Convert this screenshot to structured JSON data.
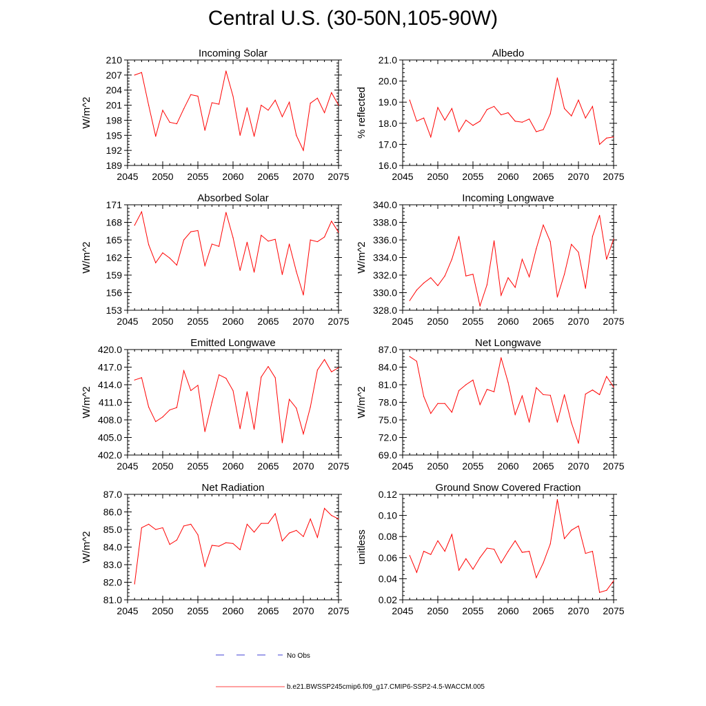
{
  "page": {
    "title": "Central U.S. (30-50N,105-90W)"
  },
  "legend": {
    "entries": [
      {
        "label": "No Obs",
        "color": "#0000c8",
        "style": "dashed"
      },
      {
        "label": "b.e21.BWSSP245cmip6.f09_g17.CMIP6-SSP2-4.5-WACCM.005",
        "color": "#ff0000",
        "style": "solid"
      }
    ]
  },
  "chart_data": [
    {
      "type": "line",
      "title": "Incoming Solar",
      "ylabel": "W/m^2",
      "xlabel": "",
      "xlim": [
        2045,
        2075
      ],
      "xticks": [
        "2045",
        "2050",
        "2055",
        "2060",
        "2065",
        "2070",
        "2075"
      ],
      "ylim": [
        189,
        210
      ],
      "yticks": [
        "189",
        "192",
        "195",
        "198",
        "201",
        "204",
        "207",
        "210"
      ],
      "series": [
        {
          "name": "b.e21.BWSSP245cmip6.f09_g17.CMIP6-SSP2-4.5-WACCM.005",
          "color": "#ff0000",
          "x": [
            2046,
            2047,
            2048,
            2049,
            2050,
            2051,
            2052,
            2053,
            2054,
            2055,
            2056,
            2057,
            2058,
            2059,
            2060,
            2061,
            2062,
            2063,
            2064,
            2065,
            2066,
            2067,
            2068,
            2069,
            2070,
            2071,
            2072,
            2073,
            2074,
            2075
          ],
          "values": [
            207.0,
            207.5,
            201.0,
            194.8,
            200.0,
            197.6,
            197.3,
            200.3,
            203.1,
            202.8,
            196.0,
            201.5,
            201.2,
            207.8,
            202.8,
            195.0,
            200.5,
            194.8,
            201.0,
            200.0,
            202.0,
            198.7,
            201.6,
            195.0,
            192.0,
            201.4,
            202.4,
            199.5,
            203.5,
            201.0
          ]
        }
      ]
    },
    {
      "type": "line",
      "title": "Albedo",
      "ylabel": "% reflected",
      "xlabel": "",
      "xlim": [
        2045,
        2075
      ],
      "xticks": [
        "2045",
        "2050",
        "2055",
        "2060",
        "2065",
        "2070",
        "2075"
      ],
      "ylim": [
        16.0,
        21.0
      ],
      "yticks": [
        "16.0",
        "17.0",
        "18.0",
        "19.0",
        "20.0",
        "21.0"
      ],
      "series": [
        {
          "name": "b.e21.BWSSP245cmip6.f09_g17.CMIP6-SSP2-4.5-WACCM.005",
          "color": "#ff0000",
          "x": [
            2046,
            2047,
            2048,
            2049,
            2050,
            2051,
            2052,
            2053,
            2054,
            2055,
            2056,
            2057,
            2058,
            2059,
            2060,
            2061,
            2062,
            2063,
            2064,
            2065,
            2066,
            2067,
            2068,
            2069,
            2070,
            2071,
            2072,
            2073,
            2074,
            2075
          ],
          "values": [
            19.1,
            18.1,
            18.25,
            17.35,
            18.75,
            18.15,
            18.7,
            17.6,
            18.15,
            17.9,
            18.1,
            18.65,
            18.8,
            18.4,
            18.5,
            18.1,
            18.05,
            18.2,
            17.6,
            17.7,
            18.45,
            20.15,
            18.7,
            18.35,
            19.1,
            18.25,
            18.8,
            17.0,
            17.3,
            17.35
          ]
        }
      ]
    },
    {
      "type": "line",
      "title": "Absorbed Solar",
      "ylabel": "W/m^2",
      "xlabel": "",
      "xlim": [
        2045,
        2075
      ],
      "xticks": [
        "2045",
        "2050",
        "2055",
        "2060",
        "2065",
        "2070",
        "2075"
      ],
      "ylim": [
        153,
        171
      ],
      "yticks": [
        "153",
        "156",
        "159",
        "162",
        "165",
        "168",
        "171"
      ],
      "series": [
        {
          "name": "b.e21.BWSSP245cmip6.f09_g17.CMIP6-SSP2-4.5-WACCM.005",
          "color": "#ff0000",
          "x": [
            2046,
            2047,
            2048,
            2049,
            2050,
            2051,
            2052,
            2053,
            2054,
            2055,
            2056,
            2057,
            2058,
            2059,
            2060,
            2061,
            2062,
            2063,
            2064,
            2065,
            2066,
            2067,
            2068,
            2069,
            2070,
            2071,
            2072,
            2073,
            2074,
            2075
          ],
          "values": [
            167.5,
            169.8,
            164.2,
            161.1,
            162.8,
            161.9,
            160.7,
            165.0,
            166.4,
            166.6,
            160.6,
            164.3,
            163.9,
            169.7,
            165.4,
            159.8,
            164.6,
            159.5,
            165.8,
            164.8,
            165.1,
            159.1,
            164.3,
            159.6,
            155.6,
            165.0,
            164.7,
            165.5,
            168.2,
            166.3
          ]
        }
      ]
    },
    {
      "type": "line",
      "title": "Incoming Longwave",
      "ylabel": "W/m^2",
      "xlabel": "",
      "xlim": [
        2045,
        2075
      ],
      "xticks": [
        "2045",
        "2050",
        "2055",
        "2060",
        "2065",
        "2070",
        "2075"
      ],
      "ylim": [
        328.0,
        340.0
      ],
      "yticks": [
        "328.0",
        "330.0",
        "332.0",
        "334.0",
        "336.0",
        "338.0",
        "340.0"
      ],
      "series": [
        {
          "name": "b.e21.BWSSP245cmip6.f09_g17.CMIP6-SSP2-4.5-WACCM.005",
          "color": "#ff0000",
          "x": [
            2046,
            2047,
            2048,
            2049,
            2050,
            2051,
            2052,
            2053,
            2054,
            2055,
            2056,
            2057,
            2058,
            2059,
            2060,
            2061,
            2062,
            2063,
            2064,
            2065,
            2066,
            2067,
            2068,
            2069,
            2070,
            2071,
            2072,
            2073,
            2074,
            2075
          ],
          "values": [
            329.1,
            330.3,
            331.1,
            331.7,
            330.8,
            331.9,
            333.8,
            336.4,
            331.9,
            332.1,
            328.5,
            330.9,
            335.9,
            329.7,
            331.7,
            330.6,
            333.8,
            331.8,
            335.0,
            337.7,
            335.8,
            329.5,
            332.1,
            335.5,
            334.6,
            330.5,
            336.4,
            338.8,
            333.8,
            336.1
          ]
        }
      ]
    },
    {
      "type": "line",
      "title": "Emitted Longwave",
      "ylabel": "W/m^2",
      "xlabel": "",
      "xlim": [
        2045,
        2075
      ],
      "xticks": [
        "2045",
        "2050",
        "2055",
        "2060",
        "2065",
        "2070",
        "2075"
      ],
      "ylim": [
        402.0,
        420.0
      ],
      "yticks": [
        "402.0",
        "405.0",
        "408.0",
        "411.0",
        "414.0",
        "417.0",
        "420.0"
      ],
      "series": [
        {
          "name": "b.e21.BWSSP245cmip6.f09_g17.CMIP6-SSP2-4.5-WACCM.005",
          "color": "#ff0000",
          "x": [
            2046,
            2047,
            2048,
            2049,
            2050,
            2051,
            2052,
            2053,
            2054,
            2055,
            2056,
            2057,
            2058,
            2059,
            2060,
            2061,
            2062,
            2063,
            2064,
            2065,
            2066,
            2067,
            2068,
            2069,
            2070,
            2071,
            2072,
            2073,
            2074,
            2075
          ],
          "values": [
            414.8,
            415.2,
            410.2,
            407.7,
            408.5,
            409.7,
            410.1,
            416.4,
            413.0,
            413.9,
            406.0,
            411.0,
            415.7,
            415.1,
            413.0,
            406.5,
            412.8,
            406.4,
            415.3,
            417.1,
            415.2,
            404.1,
            411.5,
            410.0,
            405.6,
            410.2,
            416.5,
            418.3,
            416.2,
            416.9
          ]
        }
      ]
    },
    {
      "type": "line",
      "title": "Net Longwave",
      "ylabel": "W/m^2",
      "xlabel": "",
      "xlim": [
        2045,
        2075
      ],
      "xticks": [
        "2045",
        "2050",
        "2055",
        "2060",
        "2065",
        "2070",
        "2075"
      ],
      "ylim": [
        69.0,
        87.0
      ],
      "yticks": [
        "69.0",
        "72.0",
        "75.0",
        "78.0",
        "81.0",
        "84.0",
        "87.0"
      ],
      "series": [
        {
          "name": "b.e21.BWSSP245cmip6.f09_g17.CMIP6-SSP2-4.5-WACCM.005",
          "color": "#ff0000",
          "x": [
            2046,
            2047,
            2048,
            2049,
            2050,
            2051,
            2052,
            2053,
            2054,
            2055,
            2056,
            2057,
            2058,
            2059,
            2060,
            2061,
            2062,
            2063,
            2064,
            2065,
            2066,
            2067,
            2068,
            2069,
            2070,
            2071,
            2072,
            2073,
            2074,
            2075
          ],
          "values": [
            85.8,
            85.0,
            79.0,
            76.1,
            77.8,
            77.8,
            76.3,
            80.0,
            81.0,
            81.8,
            77.6,
            80.2,
            79.8,
            85.6,
            81.4,
            75.9,
            79.1,
            74.6,
            80.5,
            79.3,
            79.2,
            74.6,
            79.3,
            74.5,
            71.0,
            79.4,
            80.1,
            79.3,
            82.4,
            80.6
          ]
        }
      ]
    },
    {
      "type": "line",
      "title": "Net Radiation",
      "ylabel": "W/m^2",
      "xlabel": "",
      "xlim": [
        2045,
        2075
      ],
      "xticks": [
        "2045",
        "2050",
        "2055",
        "2060",
        "2065",
        "2070",
        "2075"
      ],
      "ylim": [
        81.0,
        87.0
      ],
      "yticks": [
        "81.0",
        "82.0",
        "83.0",
        "84.0",
        "85.0",
        "86.0",
        "87.0"
      ],
      "series": [
        {
          "name": "b.e21.BWSSP245cmip6.f09_g17.CMIP6-SSP2-4.5-WACCM.005",
          "color": "#ff0000",
          "x": [
            2046,
            2047,
            2048,
            2049,
            2050,
            2051,
            2052,
            2053,
            2054,
            2055,
            2056,
            2057,
            2058,
            2059,
            2060,
            2061,
            2062,
            2063,
            2064,
            2065,
            2066,
            2067,
            2068,
            2069,
            2070,
            2071,
            2072,
            2073,
            2074,
            2075
          ],
          "values": [
            81.9,
            85.1,
            85.3,
            85.0,
            85.1,
            84.15,
            84.4,
            85.2,
            85.3,
            84.7,
            82.9,
            84.1,
            84.05,
            84.25,
            84.2,
            83.85,
            85.3,
            84.85,
            85.35,
            85.35,
            85.9,
            84.35,
            84.8,
            84.95,
            84.6,
            85.6,
            84.55,
            86.2,
            85.8,
            85.6
          ]
        }
      ]
    },
    {
      "type": "line",
      "title": "Ground Snow Covered Fraction",
      "ylabel": "unitless",
      "xlabel": "",
      "xlim": [
        2045,
        2075
      ],
      "xticks": [
        "2045",
        "2050",
        "2055",
        "2060",
        "2065",
        "2070",
        "2075"
      ],
      "ylim": [
        0.02,
        0.12
      ],
      "yticks": [
        "0.02",
        "0.04",
        "0.06",
        "0.08",
        "0.10",
        "0.12"
      ],
      "series": [
        {
          "name": "b.e21.BWSSP245cmip6.f09_g17.CMIP6-SSP2-4.5-WACCM.005",
          "color": "#ff0000",
          "x": [
            2046,
            2047,
            2048,
            2049,
            2050,
            2051,
            2052,
            2053,
            2054,
            2055,
            2056,
            2057,
            2058,
            2059,
            2060,
            2061,
            2062,
            2063,
            2064,
            2065,
            2066,
            2067,
            2068,
            2069,
            2070,
            2071,
            2072,
            2073,
            2074,
            2075
          ],
          "values": [
            0.062,
            0.046,
            0.066,
            0.063,
            0.076,
            0.066,
            0.082,
            0.048,
            0.059,
            0.049,
            0.06,
            0.069,
            0.068,
            0.055,
            0.066,
            0.076,
            0.065,
            0.066,
            0.041,
            0.055,
            0.073,
            0.115,
            0.078,
            0.086,
            0.09,
            0.064,
            0.066,
            0.027,
            0.029,
            0.038
          ]
        }
      ]
    }
  ]
}
